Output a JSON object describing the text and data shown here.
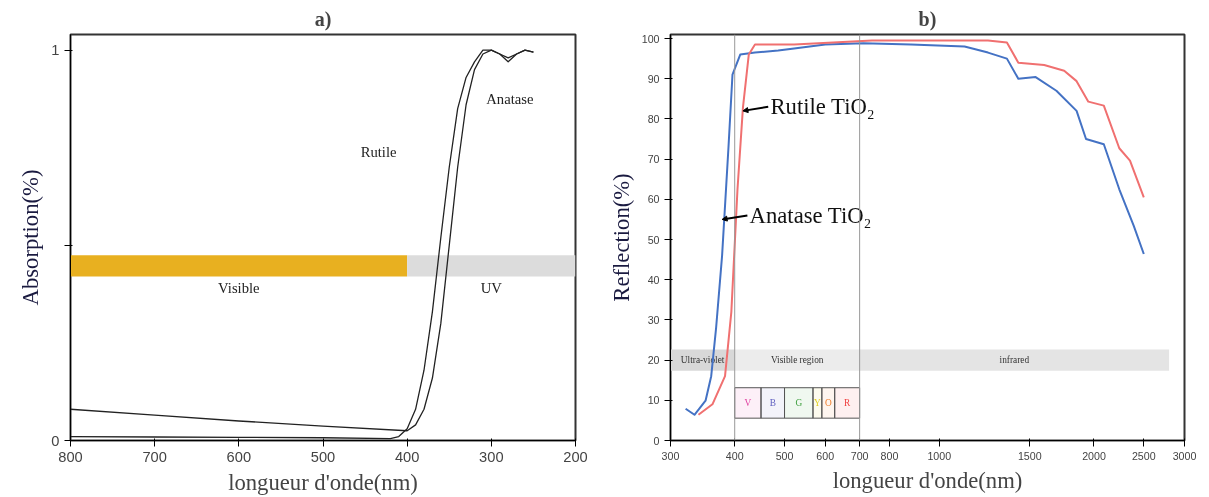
{
  "chart_data": [
    {
      "type": "line",
      "title": "a)",
      "xlabel": "longueur d'onde(nm)",
      "ylabel": "Absorption(%)",
      "xlim": [
        800,
        200
      ],
      "ylim": [
        0,
        1.04
      ],
      "xticks": [
        800,
        700,
        600,
        500,
        400,
        300,
        200
      ],
      "yticks": [
        0,
        {
          "value": 0.5,
          "label": null
        },
        1
      ],
      "grid": false,
      "marker": "none",
      "line_style": "solid",
      "series": [
        {
          "color": "#222222",
          "x": [
            800,
            700,
            600,
            500,
            420,
            410,
            400,
            390,
            380,
            370,
            360,
            350,
            340,
            330,
            320,
            310,
            300,
            290,
            280,
            270,
            260,
            250
          ],
          "values": [
            0.01,
            0.009,
            0.008,
            0.007,
            0.005,
            0.01,
            0.03,
            0.08,
            0.18,
            0.33,
            0.52,
            0.7,
            0.85,
            0.93,
            0.97,
            1.0,
            1.0,
            0.99,
            0.98,
            0.99,
            1.0,
            0.995
          ]
        },
        {
          "color": "#222222",
          "x": [
            800,
            700,
            600,
            500,
            400,
            390,
            380,
            370,
            360,
            350,
            340,
            330,
            320,
            310,
            300,
            290,
            280,
            270,
            260,
            250
          ],
          "values": [
            0.08,
            0.065,
            0.05,
            0.037,
            0.025,
            0.04,
            0.08,
            0.16,
            0.3,
            0.5,
            0.7,
            0.86,
            0.95,
            0.99,
            1.0,
            0.99,
            0.97,
            0.99,
            1.0,
            0.995
          ]
        }
      ],
      "bands": [
        {
          "axis": "x",
          "from": 800,
          "to": 400,
          "label": "Visible",
          "color": "#e8b020"
        },
        {
          "axis": "x",
          "from": 400,
          "to": 200,
          "label": "UV",
          "color": "#dcdcdc"
        }
      ],
      "annotations": [
        "Rutile",
        "Anatase"
      ]
    },
    {
      "type": "line",
      "title": "b)",
      "xlabel": "longueur d'onde(nm)",
      "ylabel": "Reflection(%)",
      "log": "x",
      "xlim": [
        300,
        3000
      ],
      "ylim": [
        0,
        101
      ],
      "xticks": [
        300,
        400,
        500,
        600,
        700,
        800,
        1000,
        1500,
        2000,
        2500,
        3000
      ],
      "yticks": [
        0,
        10,
        20,
        30,
        40,
        50,
        60,
        70,
        80,
        90,
        100
      ],
      "grid": false,
      "marker": "none",
      "line_style": "solid",
      "series": [
        {
          "color": "#4472c4",
          "x": [
            321,
            334,
            351,
            360,
            368,
            378,
            389,
            396,
            410,
            438,
            486,
            522,
            600,
            712,
            881,
            1120,
            1244,
            1354,
            1425,
            1540,
            1690,
            1850,
            1930,
            2090,
            2240,
            2390,
            2500
          ],
          "values": [
            7.9,
            6.4,
            9.9,
            16,
            28,
            46,
            73,
            91,
            96,
            96.5,
            97,
            97.5,
            98.5,
            98.8,
            98.5,
            98,
            96.5,
            95,
            90,
            90.4,
            87,
            82,
            75,
            73.7,
            62.5,
            53.4,
            46.4
          ]
        },
        {
          "color": "#f07070",
          "x": [
            340,
            362,
            383,
            394,
            405,
            415,
            426,
            438,
            522,
            740,
            1244,
            1354,
            1425,
            1600,
            1750,
            1850,
            1950,
            2090,
            2240,
            2350,
            2500
          ],
          "values": [
            6.4,
            9,
            16,
            32,
            62.5,
            82.8,
            96,
            98.5,
            98.5,
            99.5,
            99.5,
            99,
            94,
            93.4,
            92,
            89.4,
            84.3,
            83.3,
            72.7,
            69.6,
            60.5
          ]
        }
      ],
      "ref_lines": [
        {
          "axis": "x",
          "value": 400,
          "color": "#999999"
        },
        {
          "axis": "x",
          "value": 700,
          "color": "#999999"
        }
      ],
      "bands": [
        {
          "axis": "x",
          "from": 300,
          "to": 400,
          "label": "Ultra-violet",
          "color": "#d8d8d8"
        },
        {
          "axis": "x",
          "from": 400,
          "to": 700,
          "label": "Visible region",
          "color": "#ececec"
        },
        {
          "axis": "x",
          "from": 700,
          "to": 2800,
          "label": "infrared",
          "color": "#e4e4e4"
        },
        {
          "axis": "x",
          "from": 400,
          "to": 450,
          "label": "V",
          "color": "#e040a0"
        },
        {
          "axis": "x",
          "from": 450,
          "to": 500,
          "label": "B",
          "color": "#6060c0"
        },
        {
          "axis": "x",
          "from": 500,
          "to": 568,
          "label": "G",
          "color": "#40a040"
        },
        {
          "axis": "x",
          "from": 568,
          "to": 591,
          "label": "Y",
          "color": "#e0d020"
        },
        {
          "axis": "x",
          "from": 591,
          "to": 626,
          "label": "O",
          "color": "#f08030"
        },
        {
          "axis": "x",
          "from": 626,
          "to": 700,
          "label": "R",
          "color": "#f04040"
        }
      ],
      "annotations": [
        {
          "text": "Rutile TiO₂",
          "x": 415,
          "y": 82
        },
        {
          "text": "Anatase TiO₂",
          "x": 378,
          "y": 55
        }
      ]
    }
  ]
}
